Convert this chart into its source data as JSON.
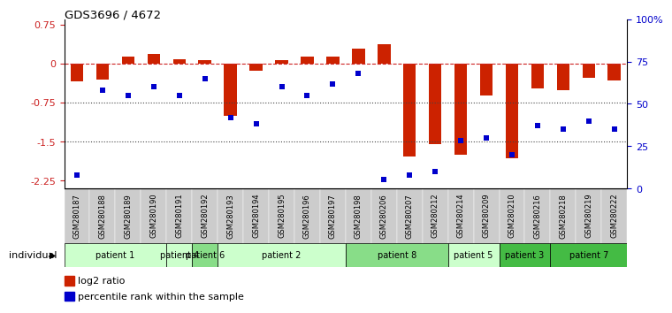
{
  "title": "GDS3696 / 4672",
  "samples": [
    "GSM280187",
    "GSM280188",
    "GSM280189",
    "GSM280190",
    "GSM280191",
    "GSM280192",
    "GSM280193",
    "GSM280194",
    "GSM280195",
    "GSM280196",
    "GSM280197",
    "GSM280198",
    "GSM280206",
    "GSM280207",
    "GSM280212",
    "GSM280214",
    "GSM280209",
    "GSM280210",
    "GSM280216",
    "GSM280218",
    "GSM280219",
    "GSM280222"
  ],
  "log2_ratio": [
    -0.35,
    -0.3,
    0.13,
    0.18,
    0.09,
    0.06,
    -1.0,
    -0.13,
    0.07,
    0.13,
    0.14,
    0.28,
    0.38,
    -1.78,
    -1.55,
    -1.75,
    -0.62,
    -1.82,
    -0.48,
    -0.52,
    -0.27,
    -0.33
  ],
  "percentile": [
    8,
    58,
    55,
    60,
    55,
    65,
    42,
    38,
    60,
    55,
    62,
    68,
    5,
    8,
    10,
    28,
    30,
    20,
    37,
    35,
    40,
    35
  ],
  "patients": [
    {
      "label": "patient 1",
      "start": 0,
      "end": 4,
      "color": "#ccffcc"
    },
    {
      "label": "patient 4",
      "start": 4,
      "end": 5,
      "color": "#ccffcc"
    },
    {
      "label": "patient 6",
      "start": 5,
      "end": 6,
      "color": "#88dd88"
    },
    {
      "label": "patient 2",
      "start": 6,
      "end": 11,
      "color": "#ccffcc"
    },
    {
      "label": "patient 8",
      "start": 11,
      "end": 15,
      "color": "#88dd88"
    },
    {
      "label": "patient 5",
      "start": 15,
      "end": 17,
      "color": "#ccffcc"
    },
    {
      "label": "patient 3",
      "start": 17,
      "end": 19,
      "color": "#44bb44"
    },
    {
      "label": "patient 7",
      "start": 19,
      "end": 22,
      "color": "#44bb44"
    }
  ],
  "bar_color": "#cc2200",
  "dot_color": "#0000cc",
  "ylim_left": [
    -2.4,
    0.85
  ],
  "ylim_right": [
    0,
    100
  ],
  "yticks_left": [
    0.75,
    0.0,
    -0.75,
    -1.5,
    -2.25
  ],
  "yticks_right_vals": [
    100,
    75,
    50,
    25,
    0
  ],
  "yticks_right_labels": [
    "100%",
    "75",
    "50",
    "25",
    "0"
  ],
  "hlines": [
    0.0,
    -0.75,
    -1.5
  ],
  "hline_styles": [
    "--",
    ":",
    ":"
  ],
  "hline_colors": [
    "#cc2222",
    "#444444",
    "#444444"
  ],
  "background_color": "#ffffff",
  "left_tick_color": "#cc2222",
  "right_tick_color": "#0000cc",
  "legend_items": [
    {
      "color": "#cc2200",
      "label": "log2 ratio"
    },
    {
      "color": "#0000cc",
      "label": "percentile rank within the sample"
    }
  ]
}
